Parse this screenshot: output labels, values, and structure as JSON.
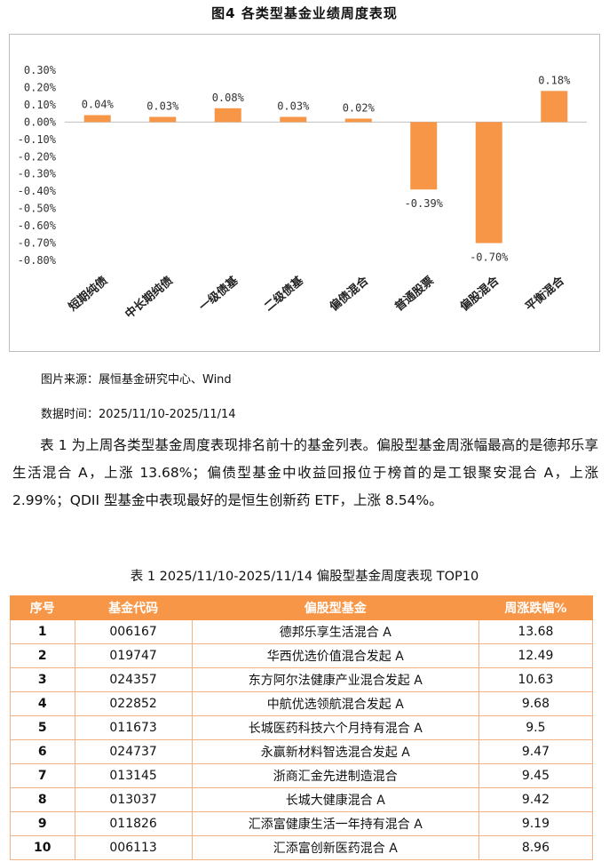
{
  "figure": {
    "title": "图4 各类型基金业绩周度表现",
    "source": "图片来源：展恒基金研究中心、Wind",
    "date": "数据时间：2025/11/10-2025/11/14"
  },
  "chart_data": {
    "type": "bar",
    "categories": [
      "短期纯债",
      "中长期纯债",
      "一级债基",
      "二级债基",
      "偏债混合",
      "普通股票",
      "偏股混合",
      "平衡混合"
    ],
    "values": [
      0.04,
      0.03,
      0.08,
      0.03,
      0.02,
      -0.39,
      -0.7,
      0.18
    ],
    "data_labels": [
      "0.04%",
      "0.03%",
      "0.08%",
      "0.03%",
      "0.02%",
      "-0.39%",
      "-0.70%",
      "0.18%"
    ],
    "y_ticks": [
      "0.30%",
      "0.20%",
      "0.10%",
      "0.00%",
      "-0.10%",
      "-0.20%",
      "-0.30%",
      "-0.40%",
      "-0.50%",
      "-0.60%",
      "-0.70%",
      "-0.80%"
    ],
    "ylim": [
      -0.8,
      0.3
    ],
    "grid": false,
    "bar_color": "#f79646"
  },
  "paragraph": "表 1 为上周各类型基金周度表现排名前十的基金列表。偏股型基金周涨幅最高的是德邦乐享生活混合 A，上涨 13.68%；偏债型基金中收益回报位于榜首的是工银聚安混合 A，上涨 2.99%；QDII 型基金中表现最好的是恒生创新药 ETF，上涨 8.54%。",
  "table": {
    "title": "表 1 2025/11/10-2025/11/14 偏股型基金周度表现 TOP10",
    "headers": [
      "序号",
      "基金代码",
      "偏股型基金",
      "周涨跌幅%"
    ],
    "rows": [
      [
        "1",
        "006167",
        "德邦乐享生活混合 A",
        "13.68"
      ],
      [
        "2",
        "019747",
        "华西优选价值混合发起 A",
        "12.49"
      ],
      [
        "3",
        "024357",
        "东方阿尔法健康产业混合发起 A",
        "10.63"
      ],
      [
        "4",
        "022852",
        "中航优选领航混合发起 A",
        "9.68"
      ],
      [
        "5",
        "011673",
        "长城医药科技六个月持有混合 A",
        "9.5"
      ],
      [
        "6",
        "024737",
        "永赢新材料智选混合发起 A",
        "9.47"
      ],
      [
        "7",
        "013145",
        "浙商汇金先进制造混合",
        "9.45"
      ],
      [
        "8",
        "013037",
        "长城大健康混合 A",
        "9.42"
      ],
      [
        "9",
        "011826",
        "汇添富健康生活一年持有混合 A",
        "9.19"
      ],
      [
        "10",
        "006113",
        "汇添富创新医药混合 A",
        "8.96"
      ]
    ],
    "header_color": "#f79646",
    "border_color": "#f4b183"
  }
}
